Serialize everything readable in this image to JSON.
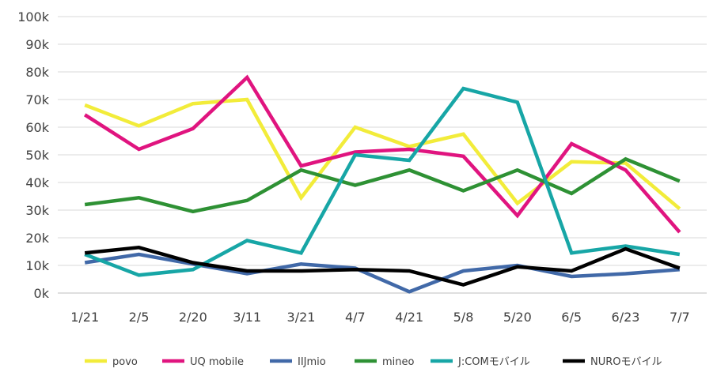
{
  "chart_data": {
    "type": "line",
    "title": "",
    "xlabel": "",
    "ylabel": "",
    "categories": [
      "1/21",
      "2/5",
      "2/20",
      "3/11",
      "3/21",
      "4/7",
      "4/21",
      "5/8",
      "5/20",
      "6/5",
      "6/23",
      "7/7"
    ],
    "ylim": [
      0,
      100000
    ],
    "y_ticks": [
      {
        "value": 0,
        "label": "0k"
      },
      {
        "value": 10000,
        "label": "10k"
      },
      {
        "value": 20000,
        "label": "20k"
      },
      {
        "value": 30000,
        "label": "30k"
      },
      {
        "value": 40000,
        "label": "40k"
      },
      {
        "value": 50000,
        "label": "50k"
      },
      {
        "value": 60000,
        "label": "60k"
      },
      {
        "value": 70000,
        "label": "70k"
      },
      {
        "value": 80000,
        "label": "80k"
      },
      {
        "value": 90000,
        "label": "90k"
      },
      {
        "value": 100000,
        "label": "100k"
      }
    ],
    "grid": true,
    "legend_position": "bottom",
    "series": [
      {
        "name": "povo",
        "color": "#F2EC3A",
        "values": [
          68000,
          60500,
          68500,
          70000,
          34500,
          60000,
          53000,
          57500,
          32500,
          47500,
          47000,
          30500
        ]
      },
      {
        "name": "UQ mobile",
        "color": "#E0147F",
        "values": [
          64500,
          52000,
          59500,
          78000,
          46000,
          51000,
          52000,
          49500,
          28000,
          54000,
          44500,
          22000
        ]
      },
      {
        "name": "IIJmio",
        "color": "#4169A8",
        "values": [
          11000,
          14000,
          10500,
          7000,
          10500,
          9000,
          500,
          8000,
          10000,
          6000,
          7000,
          8500
        ]
      },
      {
        "name": "mineo",
        "color": "#2E9134",
        "values": [
          32000,
          34500,
          29500,
          33500,
          44500,
          39000,
          44500,
          37000,
          44500,
          36000,
          48500,
          40500
        ]
      },
      {
        "name": "J:COMモバイル",
        "color": "#17A6A6",
        "values": [
          14000,
          6500,
          8500,
          19000,
          14500,
          50000,
          48000,
          74000,
          69000,
          14500,
          17000,
          14000
        ]
      },
      {
        "name": "NUROモバイル",
        "color": "#000000",
        "values": [
          14500,
          16500,
          11000,
          8000,
          8000,
          8500,
          8000,
          3000,
          9500,
          8000,
          16000,
          9000
        ]
      }
    ]
  }
}
